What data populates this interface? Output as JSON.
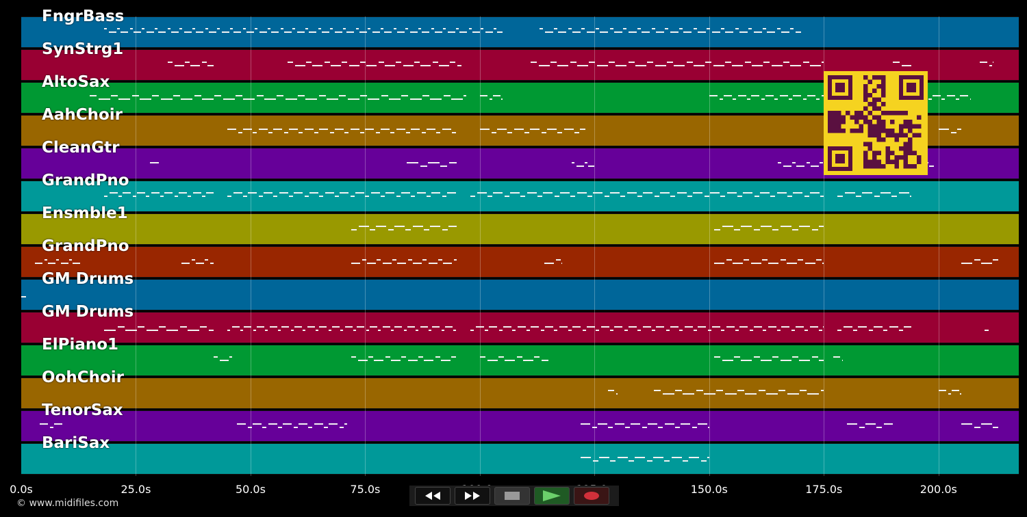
{
  "tracks": [
    {
      "name": "FngrBass",
      "color": "#006699"
    },
    {
      "name": "SynStrg1",
      "color": "#990033"
    },
    {
      "name": "AltoSax",
      "color": "#009933"
    },
    {
      "name": "AahChoir",
      "color": "#996600"
    },
    {
      "name": "CleanGtr",
      "color": "#660099"
    },
    {
      "name": "GrandPno",
      "color": "#009999"
    },
    {
      "name": "Ensmble1",
      "color": "#999900"
    },
    {
      "name": "GrandPno",
      "color": "#992600"
    },
    {
      "name": "GM Drums",
      "color": "#006699"
    },
    {
      "name": "GM Drums",
      "color": "#990033"
    },
    {
      "name": "ElPiano1",
      "color": "#009933"
    },
    {
      "name": "OohChoir",
      "color": "#996600"
    },
    {
      "name": "TenorSax",
      "color": "#660099"
    },
    {
      "name": "BariSax",
      "color": "#009999"
    }
  ],
  "time_axis": {
    "ticks": [
      "0.0s",
      "25.0s",
      "50.0s",
      "75.0s",
      "100.0s",
      "125.0s",
      "150.0s",
      "175.0s",
      "200.0s"
    ],
    "max_seconds": 217.5
  },
  "note_segments_seconds": [
    [
      [
        18,
        105
      ],
      [
        113,
        170
      ]
    ],
    [
      [
        32,
        42
      ],
      [
        58,
        96
      ],
      [
        111,
        175
      ],
      [
        190,
        194
      ],
      [
        209,
        212
      ]
    ],
    [
      [
        15,
        97
      ],
      [
        100,
        105
      ],
      [
        150,
        207
      ]
    ],
    [
      [
        45,
        95
      ],
      [
        100,
        123
      ],
      [
        200,
        205
      ]
    ],
    [
      [
        28,
        30
      ],
      [
        84,
        95
      ],
      [
        120,
        125
      ],
      [
        165,
        180
      ],
      [
        190,
        199
      ]
    ],
    [
      [
        18,
        42
      ],
      [
        45,
        95
      ],
      [
        98,
        175
      ],
      [
        178,
        194
      ]
    ],
    [
      [
        72,
        95
      ],
      [
        151,
        175
      ]
    ],
    [
      [
        3,
        13
      ],
      [
        35,
        42
      ],
      [
        72,
        95
      ],
      [
        114,
        118
      ],
      [
        151,
        175
      ],
      [
        205,
        213
      ]
    ],
    [
      [
        0,
        1
      ]
    ],
    [
      [
        18,
        42
      ],
      [
        45,
        95
      ],
      [
        98,
        175
      ],
      [
        178,
        194
      ],
      [
        210,
        211
      ]
    ],
    [
      [
        42,
        46
      ],
      [
        72,
        95
      ],
      [
        100,
        115
      ],
      [
        151,
        175
      ],
      [
        177,
        179
      ]
    ],
    [
      [
        128,
        130
      ],
      [
        138,
        175
      ],
      [
        200,
        205
      ]
    ],
    [
      [
        4,
        9
      ],
      [
        47,
        71
      ],
      [
        122,
        150
      ],
      [
        180,
        190
      ],
      [
        205,
        213
      ]
    ],
    [
      [
        122,
        150
      ]
    ]
  ],
  "controls": {
    "rewind_icon": "rewind-icon",
    "forward_icon": "fast-forward-icon",
    "stop_icon": "stop-icon",
    "play_icon": "play-icon",
    "record_icon": "record-icon"
  },
  "copyright": "© www.midifiles.com"
}
